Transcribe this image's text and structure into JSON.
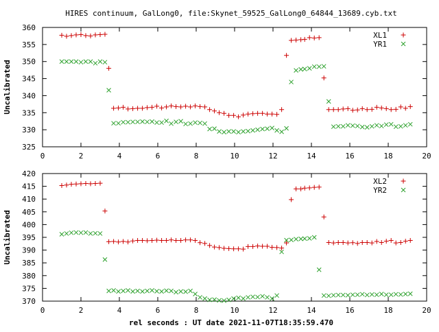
{
  "title": "HIRES continuum, GalLong0, file:Skynet_59525_GalLong0_64844_13689.cyb.txt",
  "xlabel": "rel seconds : UT date 2021-11-07T18:35:59.470",
  "colors": {
    "series_a": "#cc0000",
    "series_b": "#2ca02c",
    "axis": "#000000"
  },
  "chart_data": [
    {
      "type": "scatter",
      "ylabel": "Uncalibrated",
      "xlim": [
        0,
        20
      ],
      "ylim": [
        325,
        360
      ],
      "xticks": [
        0,
        2,
        4,
        6,
        8,
        10,
        12,
        14,
        16,
        18,
        20
      ],
      "yticks": [
        325,
        330,
        335,
        340,
        345,
        350,
        355,
        360
      ],
      "grid": false,
      "legend": "top-right",
      "series": [
        {
          "name": "XL1",
          "marker": "plus",
          "x": [
            1.0,
            1.25,
            1.5,
            1.75,
            2.0,
            2.25,
            2.5,
            2.75,
            3.0,
            3.25,
            3.45,
            3.7,
            3.95,
            4.2,
            4.45,
            4.7,
            4.95,
            5.2,
            5.45,
            5.7,
            5.95,
            6.2,
            6.45,
            6.7,
            6.95,
            7.2,
            7.45,
            7.7,
            7.95,
            8.2,
            8.45,
            8.7,
            8.95,
            9.2,
            9.45,
            9.7,
            9.95,
            10.2,
            10.45,
            10.7,
            10.95,
            11.2,
            11.45,
            11.7,
            11.95,
            12.2,
            12.45,
            12.7,
            12.95,
            13.2,
            13.45,
            13.65,
            13.9,
            14.15,
            14.4,
            14.65,
            14.9,
            15.15,
            15.4,
            15.65,
            15.9,
            16.15,
            16.4,
            16.65,
            16.9,
            17.15,
            17.4,
            17.65,
            17.9,
            18.15,
            18.4,
            18.65,
            18.9,
            19.15
          ],
          "y": [
            357.7,
            357.4,
            357.6,
            357.8,
            357.9,
            357.6,
            357.5,
            357.8,
            357.9,
            358.0,
            348.0,
            336.3,
            336.4,
            336.6,
            336.1,
            336.2,
            336.3,
            336.3,
            336.5,
            336.6,
            336.9,
            336.4,
            336.7,
            337.0,
            336.8,
            336.7,
            336.9,
            336.7,
            337.0,
            336.8,
            336.7,
            335.9,
            335.5,
            335.0,
            334.8,
            334.2,
            334.2,
            333.8,
            334.3,
            334.6,
            334.7,
            334.8,
            334.8,
            334.6,
            334.6,
            334.5,
            335.9,
            351.8,
            356.2,
            356.3,
            356.4,
            356.5,
            357.0,
            356.9,
            357.0,
            345.2,
            335.9,
            335.9,
            335.9,
            336.1,
            336.2,
            335.7,
            335.8,
            336.2,
            335.9,
            336.0,
            336.6,
            336.4,
            336.2,
            335.9,
            336.0,
            336.7,
            336.3,
            336.8
          ]
        },
        {
          "name": "YR1",
          "marker": "cross",
          "x": [
            1.0,
            1.25,
            1.5,
            1.75,
            2.0,
            2.25,
            2.5,
            2.75,
            3.0,
            3.25,
            3.45,
            3.7,
            3.95,
            4.2,
            4.45,
            4.7,
            4.95,
            5.2,
            5.45,
            5.7,
            5.95,
            6.2,
            6.45,
            6.7,
            6.95,
            7.2,
            7.45,
            7.7,
            7.95,
            8.2,
            8.45,
            8.7,
            8.95,
            9.2,
            9.45,
            9.7,
            9.95,
            10.2,
            10.45,
            10.7,
            10.95,
            11.2,
            11.45,
            11.7,
            11.95,
            12.2,
            12.45,
            12.7,
            12.95,
            13.2,
            13.45,
            13.65,
            13.9,
            14.15,
            14.4,
            14.65,
            14.9,
            15.15,
            15.4,
            15.65,
            15.9,
            16.15,
            16.4,
            16.65,
            16.9,
            17.15,
            17.4,
            17.65,
            17.9,
            18.15,
            18.4,
            18.65,
            18.9,
            19.15
          ],
          "y": [
            350.0,
            350.0,
            350.0,
            350.0,
            349.8,
            350.0,
            350.0,
            349.5,
            350.0,
            349.8,
            341.6,
            331.9,
            331.9,
            332.2,
            332.2,
            332.3,
            332.3,
            332.4,
            332.3,
            332.4,
            332.1,
            332.1,
            332.6,
            331.8,
            332.3,
            332.5,
            331.7,
            331.8,
            332.1,
            332.0,
            331.8,
            330.2,
            330.3,
            329.5,
            329.3,
            329.5,
            329.5,
            329.3,
            329.5,
            329.6,
            329.8,
            330.0,
            330.2,
            330.3,
            330.5,
            329.8,
            329.4,
            330.4,
            344.0,
            347.4,
            347.7,
            347.8,
            348.0,
            348.5,
            348.5,
            348.6,
            338.3,
            330.9,
            331.0,
            331.0,
            331.3,
            331.2,
            331.1,
            330.8,
            330.7,
            331.0,
            331.3,
            331.1,
            331.5,
            331.6,
            330.9,
            331.0,
            331.3,
            331.6
          ]
        }
      ]
    },
    {
      "type": "scatter",
      "ylabel": "Uncalibrated",
      "xlim": [
        0,
        20
      ],
      "ylim": [
        370,
        420
      ],
      "xticks": [
        0,
        2,
        4,
        6,
        8,
        10,
        12,
        14,
        16,
        18,
        20
      ],
      "yticks": [
        370,
        375,
        380,
        385,
        390,
        395,
        400,
        405,
        410,
        415,
        420
      ],
      "grid": false,
      "legend": "top-right",
      "series": [
        {
          "name": "XL2",
          "marker": "plus",
          "x": [
            1.0,
            1.25,
            1.5,
            1.75,
            2.0,
            2.25,
            2.5,
            2.75,
            3.0,
            3.25,
            3.45,
            3.7,
            3.95,
            4.2,
            4.45,
            4.7,
            4.95,
            5.2,
            5.45,
            5.7,
            5.95,
            6.2,
            6.45,
            6.7,
            6.95,
            7.2,
            7.45,
            7.7,
            7.95,
            8.2,
            8.45,
            8.7,
            8.95,
            9.2,
            9.45,
            9.7,
            9.95,
            10.2,
            10.45,
            10.7,
            10.95,
            11.2,
            11.45,
            11.7,
            11.95,
            12.2,
            12.45,
            12.7,
            12.95,
            13.2,
            13.45,
            13.65,
            13.9,
            14.15,
            14.4,
            14.65,
            14.9,
            15.15,
            15.4,
            15.65,
            15.9,
            16.15,
            16.4,
            16.65,
            16.9,
            17.15,
            17.4,
            17.65,
            17.9,
            18.15,
            18.4,
            18.65,
            18.9,
            19.15
          ],
          "y": [
            415.3,
            415.5,
            415.8,
            415.9,
            416.0,
            416.1,
            416.0,
            416.1,
            416.2,
            405.3,
            393.3,
            393.4,
            393.2,
            393.4,
            393.2,
            393.6,
            393.8,
            393.8,
            393.7,
            393.8,
            393.9,
            393.8,
            393.8,
            394.0,
            393.8,
            393.8,
            394.0,
            394.0,
            393.8,
            392.9,
            392.6,
            391.8,
            391.2,
            391.0,
            390.7,
            390.6,
            390.5,
            390.5,
            390.4,
            391.4,
            391.4,
            391.6,
            391.5,
            391.5,
            391.1,
            391.0,
            390.8,
            392.8,
            409.8,
            414.0,
            414.0,
            414.3,
            414.4,
            414.6,
            414.7,
            403.0,
            393.0,
            392.8,
            393.0,
            393.0,
            392.8,
            392.9,
            392.6,
            393.0,
            393.0,
            392.8,
            393.4,
            393.0,
            393.5,
            393.8,
            392.8,
            393.0,
            393.5,
            393.8
          ]
        },
        {
          "name": "YR2",
          "marker": "cross",
          "x": [
            1.0,
            1.25,
            1.5,
            1.75,
            2.0,
            2.25,
            2.5,
            2.75,
            3.0,
            3.25,
            3.45,
            3.7,
            3.95,
            4.2,
            4.45,
            4.7,
            4.95,
            5.2,
            5.45,
            5.7,
            5.95,
            6.2,
            6.45,
            6.7,
            6.95,
            7.2,
            7.45,
            7.7,
            7.95,
            8.2,
            8.45,
            8.7,
            8.95,
            9.2,
            9.45,
            9.7,
            9.95,
            10.2,
            10.45,
            10.7,
            10.95,
            11.2,
            11.45,
            11.7,
            11.95,
            12.2,
            12.45,
            12.7,
            12.95,
            13.2,
            13.45,
            13.65,
            13.9,
            14.15,
            14.4,
            14.65,
            14.9,
            15.15,
            15.4,
            15.65,
            15.9,
            16.15,
            16.4,
            16.65,
            16.9,
            17.15,
            17.4,
            17.65,
            17.9,
            18.15,
            18.4,
            18.65,
            18.9,
            19.15
          ],
          "y": [
            396.2,
            396.5,
            396.8,
            396.9,
            396.8,
            396.9,
            396.5,
            396.6,
            396.5,
            386.3,
            374.0,
            374.2,
            373.8,
            374.0,
            374.2,
            373.8,
            374.0,
            373.8,
            374.0,
            374.2,
            373.9,
            373.8,
            374.1,
            374.0,
            373.5,
            373.8,
            373.7,
            374.0,
            372.8,
            371.5,
            371.0,
            370.5,
            370.6,
            370.3,
            370.2,
            370.5,
            371.0,
            371.3,
            371.0,
            371.5,
            371.7,
            371.6,
            371.9,
            371.5,
            371.0,
            372.2,
            389.3,
            393.9,
            394.0,
            394.3,
            394.4,
            394.5,
            394.6,
            395.0,
            382.3,
            372.2,
            372.1,
            372.3,
            372.4,
            372.4,
            372.3,
            372.5,
            372.5,
            372.7,
            372.4,
            372.6,
            372.5,
            372.8,
            372.5,
            372.5,
            372.7,
            372.6,
            372.8,
            372.9
          ]
        }
      ]
    }
  ]
}
